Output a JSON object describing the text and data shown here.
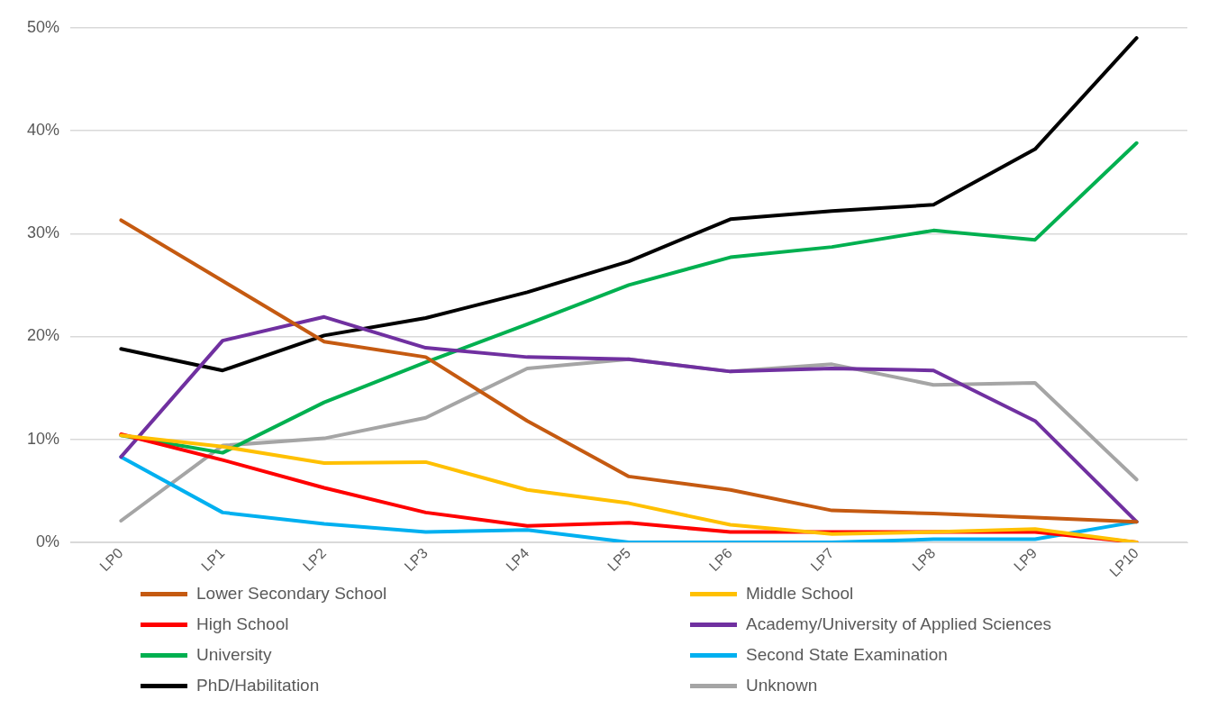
{
  "chart_data": {
    "type": "line",
    "categories": [
      "LP0",
      "LP1",
      "LP2",
      "LP3",
      "LP4",
      "LP5",
      "LP6",
      "LP7",
      "LP8",
      "LP9",
      "LP10"
    ],
    "series": [
      {
        "name": "Lower Secondary School",
        "color": "#c55a11",
        "values": [
          31.3,
          25.4,
          19.5,
          18.0,
          11.8,
          6.4,
          5.1,
          3.1,
          2.8,
          2.4,
          2.0
        ]
      },
      {
        "name": "Middle School",
        "color": "#ffc000",
        "values": [
          10.4,
          9.3,
          7.7,
          7.8,
          5.1,
          3.8,
          1.7,
          0.8,
          1.0,
          1.3,
          0.0
        ]
      },
      {
        "name": "High School",
        "color": "#ff0000",
        "values": [
          10.5,
          8.0,
          5.3,
          2.9,
          1.6,
          1.9,
          1.0,
          1.0,
          1.0,
          1.0,
          0.0
        ]
      },
      {
        "name": "Academy/University of Applied Sciences",
        "color": "#7030a0",
        "values": [
          8.3,
          19.6,
          21.9,
          18.9,
          18.0,
          17.8,
          16.6,
          16.9,
          16.7,
          11.8,
          2.0
        ]
      },
      {
        "name": "University",
        "color": "#00b050",
        "values": [
          10.4,
          8.7,
          13.6,
          17.5,
          21.2,
          25.0,
          27.7,
          28.7,
          30.3,
          29.4,
          38.8
        ]
      },
      {
        "name": "Second State Examination",
        "color": "#00b0f0",
        "values": [
          8.3,
          2.9,
          1.8,
          1.0,
          1.2,
          0.0,
          0.0,
          0.0,
          0.3,
          0.3,
          2.0
        ]
      },
      {
        "name": "PhD/Habilitation",
        "color": "#000000",
        "values": [
          18.8,
          16.7,
          20.1,
          21.8,
          24.3,
          27.3,
          31.4,
          32.2,
          32.8,
          38.2,
          49.0
        ]
      },
      {
        "name": "Unknown",
        "color": "#a5a5a5",
        "values": [
          2.1,
          9.4,
          10.1,
          12.1,
          16.9,
          17.8,
          16.6,
          17.3,
          15.3,
          15.5,
          6.1
        ]
      }
    ],
    "ylim": [
      0,
      50
    ],
    "yticks": [
      {
        "value": 0,
        "label": "0%"
      },
      {
        "value": 10,
        "label": "10%"
      },
      {
        "value": 20,
        "label": "20%"
      },
      {
        "value": 30,
        "label": "30%"
      },
      {
        "value": 40,
        "label": "40%"
      },
      {
        "value": 50,
        "label": "50%"
      }
    ],
    "grid": "y",
    "legend": "bottom",
    "marker": "none",
    "line_style": "solid"
  }
}
